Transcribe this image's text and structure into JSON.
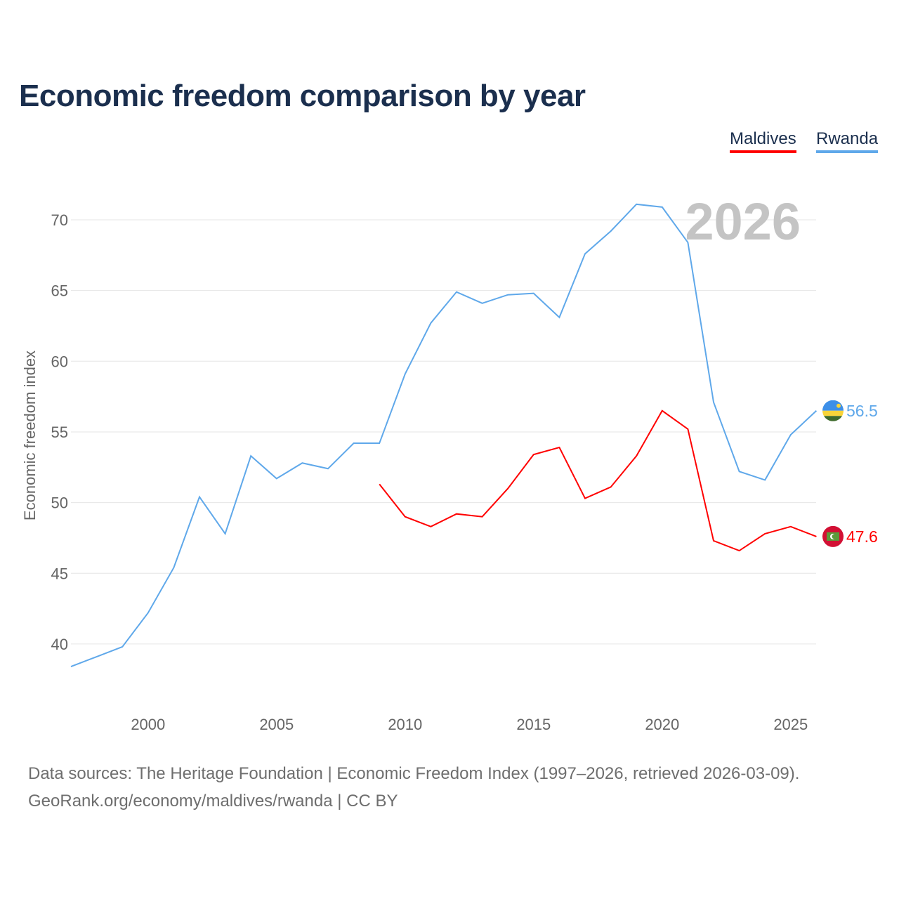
{
  "chart_data": {
    "type": "line",
    "title": "Economic freedom comparison by year",
    "ylabel": "Economic freedom index",
    "xlabel": "",
    "xlim": [
      1997,
      2026
    ],
    "ylim": [
      38,
      72
    ],
    "yticks": [
      40,
      45,
      50,
      55,
      60,
      65,
      70
    ],
    "xticks": [
      2000,
      2005,
      2010,
      2015,
      2020,
      2025
    ],
    "grid": true,
    "legend_position": "top-right",
    "year_watermark": "2026",
    "series": [
      {
        "name": "Maldives",
        "color": "#ff0000",
        "end_label": "47.6",
        "x": [
          2009,
          2010,
          2011,
          2012,
          2013,
          2014,
          2015,
          2016,
          2017,
          2018,
          2019,
          2020,
          2021,
          2022,
          2023,
          2024,
          2025,
          2026
        ],
        "values": [
          51.3,
          49.0,
          48.3,
          49.2,
          49.0,
          51.0,
          53.4,
          53.9,
          50.3,
          51.1,
          53.3,
          56.5,
          55.2,
          47.3,
          46.6,
          47.8,
          48.3,
          47.6
        ]
      },
      {
        "name": "Rwanda",
        "color": "#5fa8ea",
        "end_label": "56.5",
        "x": [
          1997,
          1998,
          1999,
          2000,
          2001,
          2002,
          2003,
          2004,
          2005,
          2006,
          2007,
          2008,
          2009,
          2010,
          2011,
          2012,
          2013,
          2014,
          2015,
          2016,
          2017,
          2018,
          2019,
          2020,
          2021,
          2022,
          2023,
          2024,
          2025,
          2026
        ],
        "values": [
          38.4,
          39.1,
          39.8,
          42.2,
          45.4,
          50.4,
          47.8,
          53.3,
          51.7,
          52.8,
          52.4,
          54.2,
          54.2,
          59.1,
          62.7,
          64.9,
          64.1,
          64.7,
          64.8,
          63.1,
          67.6,
          69.2,
          71.1,
          70.9,
          68.4,
          57.1,
          52.2,
          51.6,
          54.8,
          56.5
        ]
      }
    ]
  },
  "footer": {
    "line1": "Data sources: The Heritage Foundation | Economic Freedom Index (1997–2026, retrieved 2026-03-09).",
    "line2": "GeoRank.org/economy/maldives/rwanda | CC BY"
  }
}
